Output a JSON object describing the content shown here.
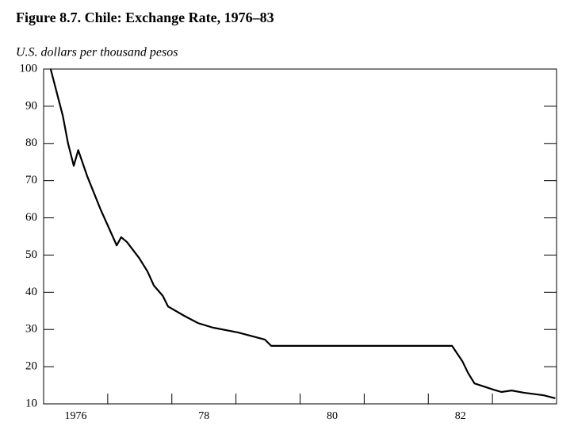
{
  "chart_data": {
    "type": "line",
    "title": "Figure 8.7.  Chile: Exchange Rate, 1976–83",
    "y_label": "U.S. dollars per thousand pesos",
    "x": [
      1976.11,
      1976.3,
      1976.38,
      1976.47,
      1976.54,
      1976.68,
      1976.89,
      1977.14,
      1977.21,
      1977.3,
      1977.49,
      1977.62,
      1977.72,
      1977.86,
      1977.94,
      1978.19,
      1978.41,
      1978.64,
      1979.03,
      1979.45,
      1979.55,
      1982.37,
      1982.53,
      1982.62,
      1982.72,
      1983.02,
      1983.14,
      1983.3,
      1983.49,
      1983.8,
      1983.98
    ],
    "series": [
      {
        "name": "Exchange rate",
        "color": "#000000",
        "values": [
          100,
          87.4,
          80.1,
          74,
          78.2,
          71.2,
          62.2,
          52.6,
          54.8,
          53.5,
          49.2,
          45.6,
          41.8,
          39,
          36.2,
          33.7,
          31.7,
          30.5,
          29.2,
          27.3,
          25.6,
          25.6,
          21.5,
          18.3,
          15.5,
          13.8,
          13.2,
          13.6,
          13,
          12.3,
          11.5
        ]
      }
    ],
    "xlim": [
      1976,
      1984
    ],
    "xticks": [
      {
        "value": 1976.5,
        "label": "1976"
      },
      {
        "value": 1978.5,
        "label": "78"
      },
      {
        "value": 1980.5,
        "label": "80"
      },
      {
        "value": 1982.5,
        "label": "82"
      }
    ],
    "x_tick_marks": [
      1977,
      1978,
      1979,
      1980,
      1981,
      1982,
      1983
    ],
    "ylim": [
      10,
      100
    ],
    "yticks": [
      10,
      20,
      30,
      40,
      50,
      60,
      70,
      80,
      90,
      100
    ]
  }
}
